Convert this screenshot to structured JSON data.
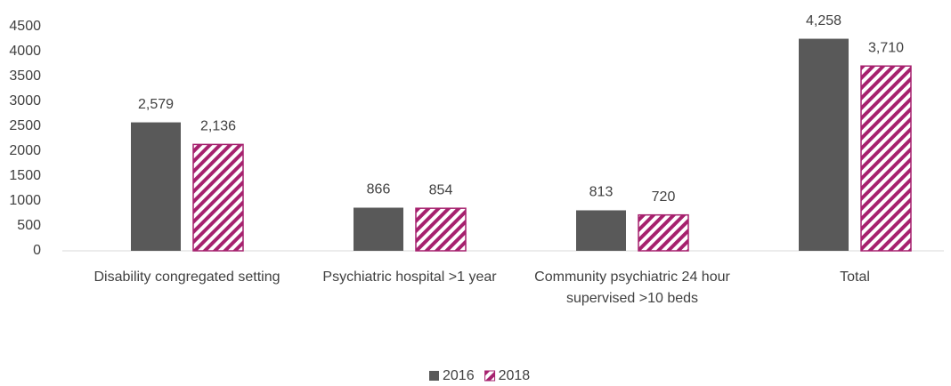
{
  "chart_data": {
    "type": "bar",
    "categories": [
      "Disability congregated setting",
      "Psychiatric hospital >1 year",
      "Community psychiatric 24 hour supervised >10 beds",
      "Total"
    ],
    "series": [
      {
        "name": "2016",
        "color": "#595959",
        "pattern": "solid",
        "values": [
          2579,
          866,
          813,
          4258
        ],
        "value_labels": [
          "2,579",
          "866",
          "813",
          "4,258"
        ]
      },
      {
        "name": "2018",
        "color": "#a6216e",
        "pattern": "diagonal-hatch",
        "values": [
          2136,
          854,
          720,
          3710
        ],
        "value_labels": [
          "2,136",
          "854",
          "720",
          "3,710"
        ]
      }
    ],
    "ylim": [
      0,
      4500
    ],
    "yticks": [
      0,
      500,
      1000,
      1500,
      2000,
      2500,
      3000,
      3500,
      4000,
      4500
    ],
    "grid": false,
    "legend": "bottom"
  }
}
